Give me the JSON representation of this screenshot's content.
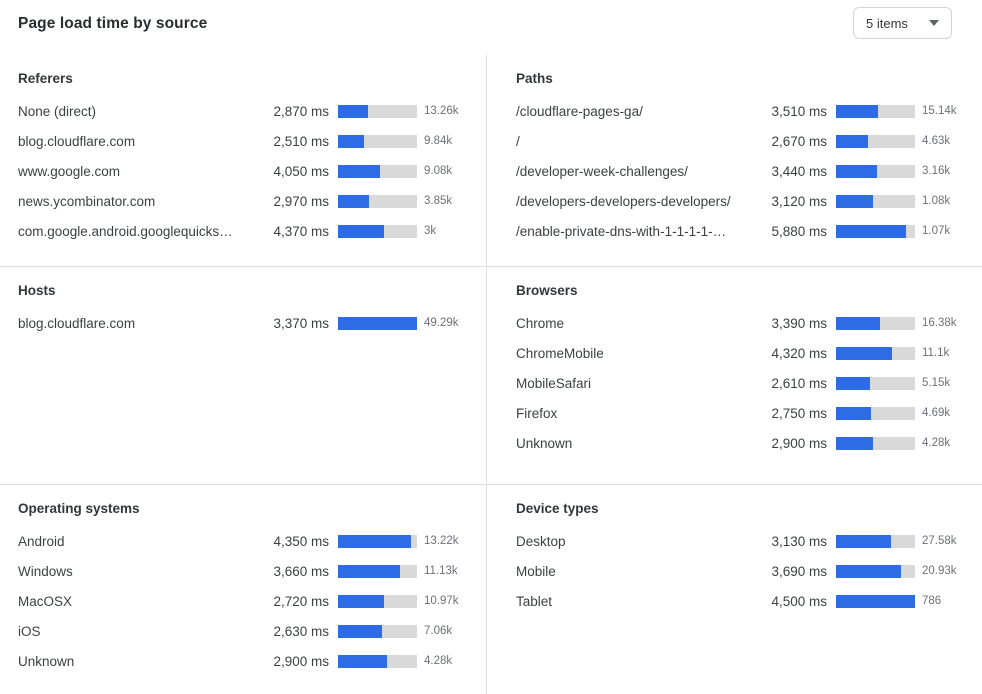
{
  "header": {
    "title": "Page load time by source",
    "items_selector": {
      "value": "5 items",
      "icon": "chevron-down-icon"
    }
  },
  "colors": {
    "bar_fill": "#2e6ce6",
    "bar_track": "#d9d9d9",
    "divider": "#dcdee1",
    "text_primary": "#3d4043",
    "text_secondary": "#6e7077"
  },
  "panels": [
    {
      "title": "Referers",
      "scale_max": 7550,
      "rows": [
        {
          "label": "None (direct)",
          "ms": 2870,
          "ms_display": "2,870 ms",
          "count": "13.26k"
        },
        {
          "label": "blog.cloudflare.com",
          "ms": 2510,
          "ms_display": "2,510 ms",
          "count": "9.84k"
        },
        {
          "label": "www.google.com",
          "ms": 4050,
          "ms_display": "4,050 ms",
          "count": "9.08k"
        },
        {
          "label": "news.ycombinator.com",
          "ms": 2970,
          "ms_display": "2,970 ms",
          "count": "3.85k"
        },
        {
          "label": "com.google.android.googlequicksearc...",
          "ms": 4370,
          "ms_display": "4,370 ms",
          "count": "3k"
        }
      ]
    },
    {
      "title": "Paths",
      "scale_max": 6650,
      "rows": [
        {
          "label": "/cloudflare-pages-ga/",
          "ms": 3510,
          "ms_display": "3,510 ms",
          "count": "15.14k"
        },
        {
          "label": "/",
          "ms": 2670,
          "ms_display": "2,670 ms",
          "count": "4.63k"
        },
        {
          "label": "/developer-week-challenges/",
          "ms": 3440,
          "ms_display": "3,440 ms",
          "count": "3.16k"
        },
        {
          "label": "/developers-developers-developers/",
          "ms": 3120,
          "ms_display": "3,120 ms",
          "count": "1.08k"
        },
        {
          "label": "/enable-private-dns-with-1-1-1-1-on-...",
          "ms": 5880,
          "ms_display": "5,880 ms",
          "count": "1.07k"
        }
      ]
    },
    {
      "title": "Hosts",
      "scale_max": 3370,
      "rows": [
        {
          "label": "blog.cloudflare.com",
          "ms": 3370,
          "ms_display": "3,370 ms",
          "count": "49.29k"
        }
      ]
    },
    {
      "title": "Browsers",
      "scale_max": 6140,
      "rows": [
        {
          "label": "Chrome",
          "ms": 3390,
          "ms_display": "3,390 ms",
          "count": "16.38k"
        },
        {
          "label": "ChromeMobile",
          "ms": 4320,
          "ms_display": "4,320 ms",
          "count": "11.1k"
        },
        {
          "label": "MobileSafari",
          "ms": 2610,
          "ms_display": "2,610 ms",
          "count": "5.15k"
        },
        {
          "label": "Firefox",
          "ms": 2750,
          "ms_display": "2,750 ms",
          "count": "4.69k"
        },
        {
          "label": "Unknown",
          "ms": 2900,
          "ms_display": "2,900 ms",
          "count": "4.28k"
        }
      ]
    },
    {
      "title": "Operating systems",
      "scale_max": 4680,
      "rows": [
        {
          "label": "Android",
          "ms": 4350,
          "ms_display": "4,350 ms",
          "count": "13.22k"
        },
        {
          "label": "Windows",
          "ms": 3660,
          "ms_display": "3,660 ms",
          "count": "11.13k"
        },
        {
          "label": "MacOSX",
          "ms": 2720,
          "ms_display": "2,720 ms",
          "count": "10.97k"
        },
        {
          "label": "iOS",
          "ms": 2630,
          "ms_display": "2,630 ms",
          "count": "7.06k"
        },
        {
          "label": "Unknown",
          "ms": 2900,
          "ms_display": "2,900 ms",
          "count": "4.28k"
        }
      ]
    },
    {
      "title": "Device types",
      "scale_max": 4500,
      "rows": [
        {
          "label": "Desktop",
          "ms": 3130,
          "ms_display": "3,130 ms",
          "count": "27.58k"
        },
        {
          "label": "Mobile",
          "ms": 3690,
          "ms_display": "3,690 ms",
          "count": "20.93k"
        },
        {
          "label": "Tablet",
          "ms": 4500,
          "ms_display": "4,500 ms",
          "count": "786"
        }
      ]
    }
  ],
  "chart_data": [
    {
      "type": "bar",
      "title": "Referers",
      "categories": [
        "None (direct)",
        "blog.cloudflare.com",
        "www.google.com",
        "news.ycombinator.com",
        "com.google.android.googlequicksearc..."
      ],
      "values": [
        2870,
        2510,
        4050,
        2970,
        4370
      ],
      "value_unit": "ms",
      "counts": [
        "13.26k",
        "9.84k",
        "9.08k",
        "3.85k",
        "3k"
      ],
      "xlim": [
        0,
        7550
      ],
      "orientation": "horizontal"
    },
    {
      "type": "bar",
      "title": "Paths",
      "categories": [
        "/cloudflare-pages-ga/",
        "/",
        "/developer-week-challenges/",
        "/developers-developers-developers/",
        "/enable-private-dns-with-1-1-1-1-on-..."
      ],
      "values": [
        3510,
        2670,
        3440,
        3120,
        5880
      ],
      "value_unit": "ms",
      "counts": [
        "15.14k",
        "4.63k",
        "3.16k",
        "1.08k",
        "1.07k"
      ],
      "xlim": [
        0,
        6650
      ],
      "orientation": "horizontal"
    },
    {
      "type": "bar",
      "title": "Hosts",
      "categories": [
        "blog.cloudflare.com"
      ],
      "values": [
        3370
      ],
      "value_unit": "ms",
      "counts": [
        "49.29k"
      ],
      "xlim": [
        0,
        3370
      ],
      "orientation": "horizontal"
    },
    {
      "type": "bar",
      "title": "Browsers",
      "categories": [
        "Chrome",
        "ChromeMobile",
        "MobileSafari",
        "Firefox",
        "Unknown"
      ],
      "values": [
        3390,
        4320,
        2610,
        2750,
        2900
      ],
      "value_unit": "ms",
      "counts": [
        "16.38k",
        "11.1k",
        "5.15k",
        "4.69k",
        "4.28k"
      ],
      "xlim": [
        0,
        6140
      ],
      "orientation": "horizontal"
    },
    {
      "type": "bar",
      "title": "Operating systems",
      "categories": [
        "Android",
        "Windows",
        "MacOSX",
        "iOS",
        "Unknown"
      ],
      "values": [
        4350,
        3660,
        2720,
        2630,
        2900
      ],
      "value_unit": "ms",
      "counts": [
        "13.22k",
        "11.13k",
        "10.97k",
        "7.06k",
        "4.28k"
      ],
      "xlim": [
        0,
        4680
      ],
      "orientation": "horizontal"
    },
    {
      "type": "bar",
      "title": "Device types",
      "categories": [
        "Desktop",
        "Mobile",
        "Tablet"
      ],
      "values": [
        3130,
        3690,
        4500
      ],
      "value_unit": "ms",
      "counts": [
        "27.58k",
        "20.93k",
        "786"
      ],
      "xlim": [
        0,
        4500
      ],
      "orientation": "horizontal"
    }
  ]
}
